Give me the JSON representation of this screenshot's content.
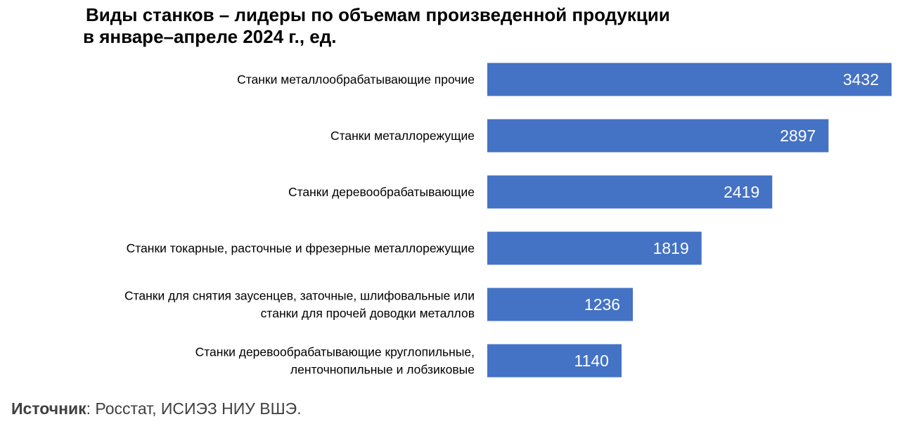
{
  "title_line1": "Виды станков – лидеры по объемам произведенной продукции",
  "title_line2": "в январе–апреле 2024 г., ед.",
  "source_label": "Источник",
  "source_text": ": Росстат, ИСИЭЗ НИУ ВШЭ.",
  "colors": {
    "bar": "#4472c4",
    "value_text": "#ffffff",
    "source_text": "#404040"
  },
  "chart_data": {
    "type": "bar",
    "orientation": "horizontal",
    "title": "Виды станков – лидеры по объемам произведенной продукции в январе–апреле 2024 г., ед.",
    "xlabel": "",
    "ylabel": "",
    "grid": false,
    "legend": "none",
    "xlim": [
      0,
      3432
    ],
    "categories": [
      [
        "Станки металлообрабатывающие прочие"
      ],
      [
        "Станки металлорежущие"
      ],
      [
        "Станки деревообрабатывающие"
      ],
      [
        "Станки токарные, расточные и фрезерные металлорежущие"
      ],
      [
        "Станки для снятия заусенцев, заточные, шлифовальные или",
        "станки для прочей доводки металлов"
      ],
      [
        "Станки деревообрабатывающие круглопильные,",
        "ленточнопильные и лобзиковые"
      ]
    ],
    "values": [
      3432,
      2897,
      2419,
      1819,
      1236,
      1140
    ],
    "data_labels": [
      "3432",
      "2897",
      "2419",
      "1819",
      "1236",
      "1140"
    ]
  }
}
